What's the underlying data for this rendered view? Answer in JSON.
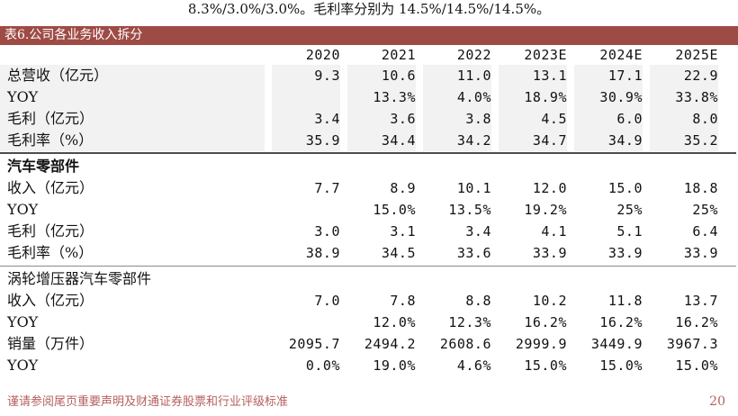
{
  "intro_text": "8.3%/3.0%/3.0%。毛利率分别为 14.5%/14.5%/14.5%。",
  "table": {
    "title": "表6.公司各业务收入拆分",
    "columns": [
      "2020",
      "2021",
      "2022",
      "2023E",
      "2024E",
      "2025E"
    ],
    "sections": [
      {
        "name": "",
        "shaded": true,
        "bold_name": false,
        "divider_below": "dark",
        "rows": [
          {
            "label": "总营收（亿元）",
            "values": [
              "9.3",
              "10.6",
              "11.0",
              "13.1",
              "17.1",
              "22.9"
            ]
          },
          {
            "label": "YOY",
            "values": [
              "",
              "13.3%",
              "4.0%",
              "18.9%",
              "30.9%",
              "33.8%"
            ]
          },
          {
            "label": "毛利（亿元）",
            "values": [
              "3.4",
              "3.6",
              "3.8",
              "4.5",
              "6.0",
              "8.0"
            ]
          },
          {
            "label": "毛利率（%）",
            "values": [
              "35.9",
              "34.4",
              "34.2",
              "34.7",
              "34.9",
              "35.2"
            ]
          }
        ]
      },
      {
        "name": "汽车零部件",
        "shaded": false,
        "bold_name": true,
        "divider_below": "light",
        "rows": [
          {
            "label": "收入（亿元）",
            "values": [
              "7.7",
              "8.9",
              "10.1",
              "12.0",
              "15.0",
              "18.8"
            ]
          },
          {
            "label": "YOY",
            "values": [
              "",
              "15.0%",
              "13.5%",
              "19.2%",
              "25%",
              "25%"
            ]
          },
          {
            "label": "毛利（亿元）",
            "values": [
              "3.0",
              "3.1",
              "3.4",
              "4.1",
              "5.1",
              "6.4"
            ]
          },
          {
            "label": "毛利率（%）",
            "values": [
              "38.9",
              "34.5",
              "33.6",
              "33.9",
              "33.9",
              "33.9"
            ]
          }
        ]
      },
      {
        "name": "涡轮增压器汽车零部件",
        "shaded": false,
        "bold_name": false,
        "divider_below": "none",
        "rows": [
          {
            "label": "收入（亿元）",
            "values": [
              "7.0",
              "7.8",
              "8.8",
              "10.2",
              "11.8",
              "13.7"
            ]
          },
          {
            "label": "YOY",
            "values": [
              "",
              "12.0%",
              "12.3%",
              "16.2%",
              "16.2%",
              "16.2%"
            ]
          },
          {
            "label": "销量（万件）",
            "values": [
              "2095.7",
              "2494.2",
              "2608.6",
              "2999.9",
              "3449.9",
              "3967.3"
            ]
          },
          {
            "label": "YOY",
            "values": [
              "0.0%",
              "19.0%",
              "4.6%",
              "15.0%",
              "15.0%",
              "15.0%"
            ]
          }
        ]
      }
    ]
  },
  "footer": {
    "disclaimer": "谨请参阅尾页重要声明及财通证券股票和行业评级标准",
    "page_number": "20"
  },
  "colors": {
    "title-bar-bg": "#9e4b45",
    "title-bar-text": "#ffffff",
    "shaded-cell-bg": "#f2f2f2",
    "divider-dark": "#4c4c4c",
    "divider-light": "#8a8a8a",
    "footer-text": "#b45f5e"
  }
}
